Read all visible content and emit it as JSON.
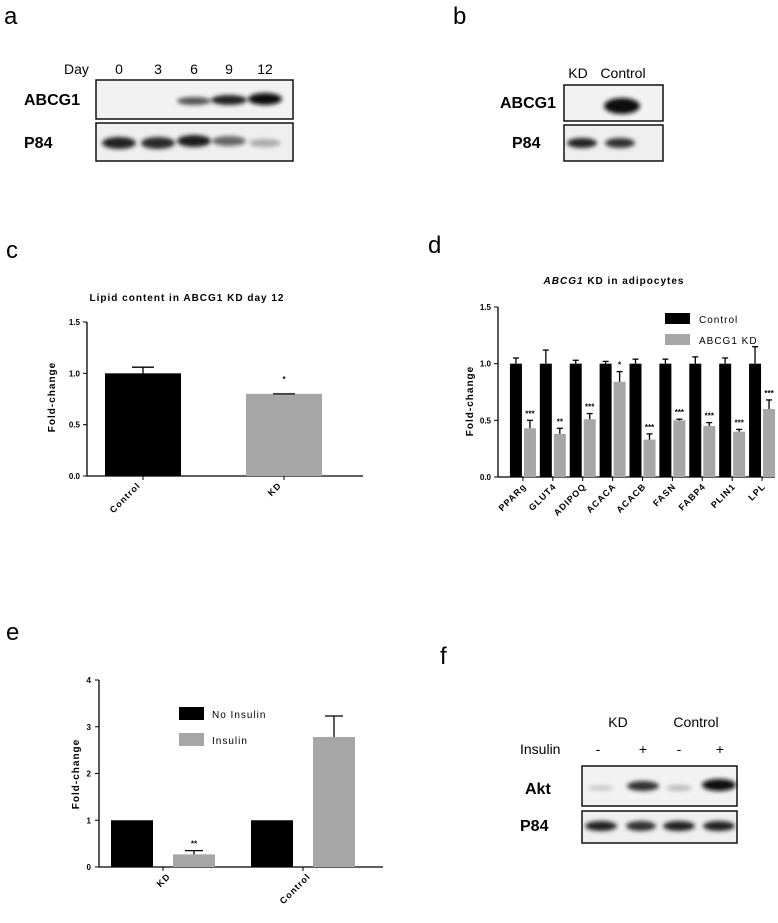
{
  "panels": {
    "a": "a",
    "b": "b",
    "c": "c",
    "d": "d",
    "e": "e",
    "f": "f"
  },
  "blot_a": {
    "lane_header": "Day",
    "lanes": [
      "0",
      "3",
      "6",
      "9",
      "12"
    ],
    "rows": [
      "ABCG1",
      "P84"
    ]
  },
  "blot_b": {
    "lanes": [
      "KD",
      "Control"
    ],
    "rows": [
      "ABCG1",
      "P84"
    ]
  },
  "blot_f": {
    "groups": [
      "KD",
      "Control"
    ],
    "row_header": "Insulin",
    "lanes": [
      "-",
      "+",
      "-",
      "+"
    ],
    "rows": [
      "Akt",
      "P84"
    ]
  },
  "colors": {
    "black": "#000000",
    "gray": "#a6a6a6"
  },
  "chart_data": [
    {
      "id": "c",
      "type": "bar",
      "title": "Lipid content in  ABCG1 KD day 12",
      "ylabel": "Fold-change",
      "xlabel": "",
      "ylim": [
        0,
        1.5
      ],
      "yticks": [
        "0.0",
        "0.5",
        "1.0",
        "1.5"
      ],
      "categories": [
        "Control",
        "KD"
      ],
      "values": [
        1.0,
        0.8
      ],
      "errors": [
        0.06,
        0.0
      ],
      "bar_colors": [
        "#000000",
        "#a6a6a6"
      ],
      "significance": [
        "",
        "*"
      ]
    },
    {
      "id": "d",
      "type": "bar",
      "title_italic": "ABCG1",
      "title_rest": " KD in adipocytes",
      "ylabel": "Fold-change",
      "xlabel": "",
      "ylim": [
        0,
        1.5
      ],
      "yticks": [
        "0.0",
        "0.5",
        "1.0",
        "1.5"
      ],
      "legend_position": "top-right",
      "categories": [
        "PPARg",
        "GLUT4",
        "ADIPOQ",
        "ACACA",
        "ACACB",
        "FASN",
        "FABP4",
        "PLIN1",
        "LPL"
      ],
      "series": [
        {
          "name": "Control",
          "color": "#000000",
          "values": [
            1.0,
            1.0,
            1.0,
            1.0,
            1.0,
            1.0,
            1.0,
            1.0,
            1.0
          ],
          "errors": [
            0.05,
            0.12,
            0.03,
            0.02,
            0.04,
            0.04,
            0.06,
            0.05,
            0.15
          ]
        },
        {
          "name": "ABCG1 KD",
          "color": "#a6a6a6",
          "values": [
            0.43,
            0.38,
            0.51,
            0.84,
            0.33,
            0.5,
            0.45,
            0.4,
            0.6
          ],
          "errors": [
            0.07,
            0.05,
            0.05,
            0.09,
            0.05,
            0.01,
            0.03,
            0.02,
            0.08
          ]
        }
      ],
      "significance": [
        "***",
        "**",
        "***",
        "*",
        "***",
        "***",
        "***",
        "***",
        "***"
      ]
    },
    {
      "id": "e",
      "type": "bar",
      "title": "",
      "ylabel": "Fold-change",
      "xlabel": "",
      "ylim": [
        0,
        4
      ],
      "yticks": [
        "0",
        "1",
        "2",
        "3",
        "4"
      ],
      "legend_position": "top-center",
      "categories": [
        "KD",
        "Control"
      ],
      "series": [
        {
          "name": "No Insulin",
          "color": "#000000",
          "values": [
            1.0,
            1.0
          ],
          "errors": [
            0,
            0
          ]
        },
        {
          "name": "Insulin",
          "color": "#a6a6a6",
          "values": [
            0.27,
            2.78
          ],
          "errors": [
            0.08,
            0.45
          ]
        }
      ],
      "significance": [
        "**",
        ""
      ]
    }
  ]
}
